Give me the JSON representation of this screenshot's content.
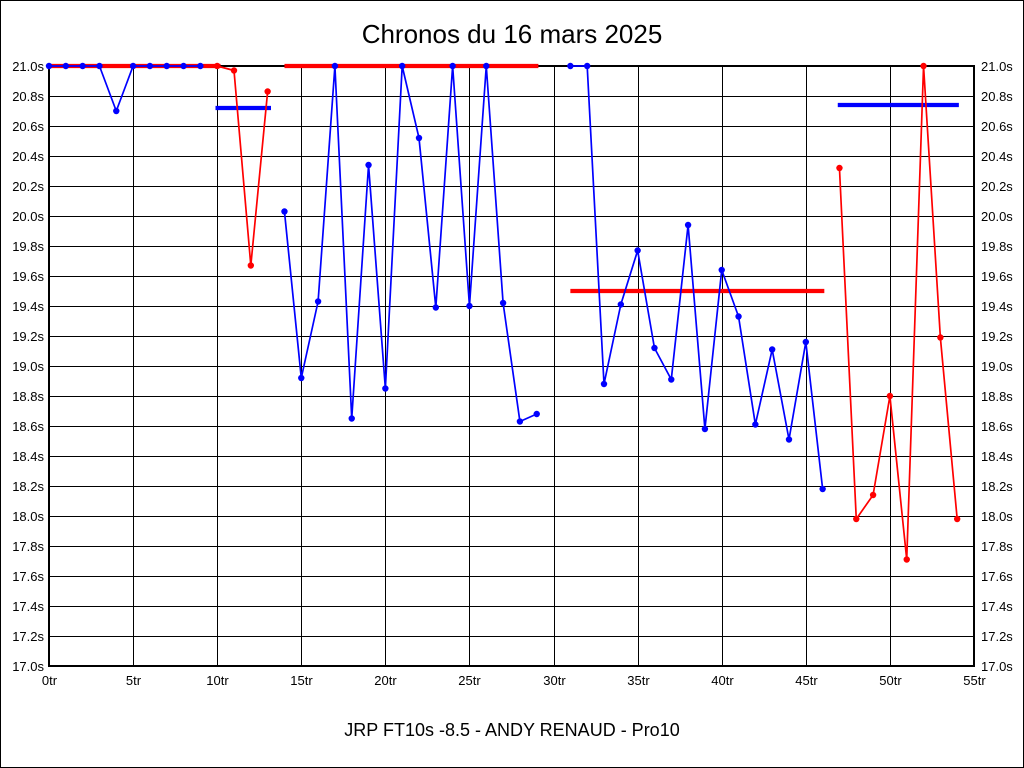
{
  "title": "Chronos du 16 mars 2025",
  "footer": "JRP FT10s -8.5 - ANDY RENAUD - Pro10",
  "colors": {
    "blue": "#0000ff",
    "red": "#ff0000",
    "grid": "#000000",
    "text": "#000000",
    "background": "#ffffff"
  },
  "chart_data": {
    "type": "line",
    "title": "Chronos du 16 mars 2025",
    "subtitle": "JRP FT10s -8.5 - ANDY RENAUD - Pro10",
    "xlabel": "",
    "ylabel": "",
    "xlim": [
      0,
      55
    ],
    "ylim": [
      17.0,
      21.0
    ],
    "grid": true,
    "legend": "none",
    "x_ticks": [
      {
        "value": 0,
        "label": "0tr"
      },
      {
        "value": 5,
        "label": "5tr"
      },
      {
        "value": 10,
        "label": "10tr"
      },
      {
        "value": 15,
        "label": "15tr"
      },
      {
        "value": 20,
        "label": "20tr"
      },
      {
        "value": 25,
        "label": "25tr"
      },
      {
        "value": 30,
        "label": "30tr"
      },
      {
        "value": 35,
        "label": "35tr"
      },
      {
        "value": 40,
        "label": "40tr"
      },
      {
        "value": 45,
        "label": "45tr"
      },
      {
        "value": 50,
        "label": "50tr"
      },
      {
        "value": 55,
        "label": "55tr"
      }
    ],
    "y_ticks": [
      {
        "value": 21.0,
        "label": "21.0s"
      },
      {
        "value": 20.8,
        "label": "20.8s"
      },
      {
        "value": 20.6,
        "label": "20.6s"
      },
      {
        "value": 20.4,
        "label": "20.4s"
      },
      {
        "value": 20.2,
        "label": "20.2s"
      },
      {
        "value": 20.0,
        "label": "20.0s"
      },
      {
        "value": 19.8,
        "label": "19.8s"
      },
      {
        "value": 19.6,
        "label": "19.6s"
      },
      {
        "value": 19.4,
        "label": "19.4s"
      },
      {
        "value": 19.2,
        "label": "19.2s"
      },
      {
        "value": 19.0,
        "label": "19.0s"
      },
      {
        "value": 18.8,
        "label": "18.8s"
      },
      {
        "value": 18.6,
        "label": "18.6s"
      },
      {
        "value": 18.4,
        "label": "18.4s"
      },
      {
        "value": 18.2,
        "label": "18.2s"
      },
      {
        "value": 18.0,
        "label": "18.0s"
      },
      {
        "value": 17.8,
        "label": "17.8s"
      },
      {
        "value": 17.6,
        "label": "17.6s"
      },
      {
        "value": 17.4,
        "label": "17.4s"
      },
      {
        "value": 17.2,
        "label": "17.2s"
      },
      {
        "value": 17.0,
        "label": "17.0s"
      }
    ],
    "series": [
      {
        "name": "serie-1-bleue",
        "color": "blue",
        "x": [
          0,
          1,
          2,
          3,
          4,
          5,
          6,
          7,
          8,
          9
        ],
        "values": [
          21.0,
          21.0,
          21.0,
          21.0,
          20.7,
          21.0,
          21.0,
          21.0,
          21.0,
          21.0
        ]
      },
      {
        "name": "serie-2-rouge",
        "color": "red",
        "x": [
          10,
          11,
          12,
          13
        ],
        "values": [
          21.0,
          20.97,
          19.67,
          20.83
        ]
      },
      {
        "name": "serie-3-bleue",
        "color": "blue",
        "x": [
          14,
          15,
          16,
          17,
          18,
          19,
          20,
          21,
          22,
          23,
          24,
          25,
          26,
          27,
          28,
          29
        ],
        "values": [
          20.03,
          18.92,
          19.43,
          21.0,
          18.65,
          20.34,
          18.85,
          21.0,
          20.52,
          19.39,
          21.0,
          19.4,
          21.0,
          19.42,
          18.63,
          18.68
        ]
      },
      {
        "name": "serie-4-bleue",
        "color": "blue",
        "x": [
          31,
          32,
          33,
          34,
          35,
          36,
          37,
          38,
          39,
          40,
          41,
          42,
          43,
          44,
          45,
          46
        ],
        "values": [
          21.0,
          21.0,
          18.88,
          19.41,
          19.77,
          19.12,
          18.91,
          19.94,
          18.58,
          19.64,
          19.33,
          18.61,
          19.11,
          18.51,
          19.16,
          18.18
        ]
      },
      {
        "name": "serie-5-rouge",
        "color": "red",
        "x": [
          47,
          48,
          49,
          50,
          51,
          52,
          53,
          54
        ],
        "values": [
          20.32,
          17.98,
          18.14,
          18.8,
          17.71,
          21.0,
          19.19,
          17.98
        ]
      }
    ],
    "reference_segments": [
      {
        "name": "repere-1-rouge",
        "color": "red",
        "y": 21.0,
        "x_start": 0.0,
        "x_end": 10.2
      },
      {
        "name": "repere-2-bleu",
        "color": "blue",
        "y": 20.72,
        "x_start": 9.9,
        "x_end": 13.2
      },
      {
        "name": "repere-3-rouge",
        "color": "red",
        "y": 21.0,
        "x_start": 14.0,
        "x_end": 29.1
      },
      {
        "name": "repere-4-rouge",
        "color": "red",
        "y": 19.5,
        "x_start": 31.0,
        "x_end": 46.1
      },
      {
        "name": "repere-5-bleu",
        "color": "blue",
        "y": 20.74,
        "x_start": 46.9,
        "x_end": 54.1
      }
    ]
  }
}
